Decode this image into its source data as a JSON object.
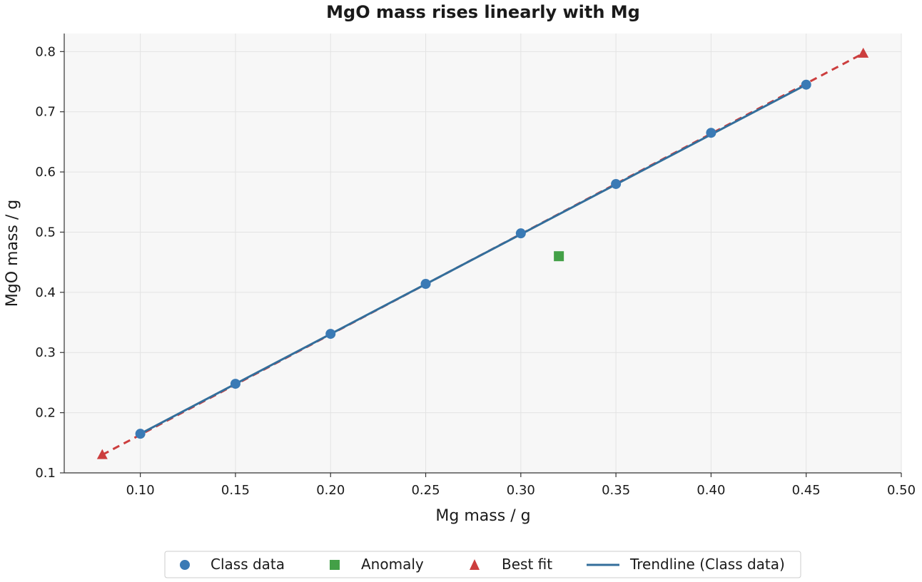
{
  "chart_data": {
    "type": "scatter",
    "title": "MgO mass rises linearly with Mg",
    "xlabel": "Mg mass / g",
    "ylabel": "MgO mass / g",
    "xlim": [
      0.06,
      0.5
    ],
    "ylim": [
      0.1,
      0.83
    ],
    "xticks": [
      "0.10",
      "0.15",
      "0.20",
      "0.25",
      "0.30",
      "0.35",
      "0.40",
      "0.45",
      "0.50"
    ],
    "yticks": [
      "0.1",
      "0.2",
      "0.3",
      "0.4",
      "0.5",
      "0.6",
      "0.7",
      "0.8"
    ],
    "grid": true,
    "legend_position": "bottom-center",
    "series": [
      {
        "name": "Class data",
        "marker": "circle",
        "color": "#3a7ab5",
        "x": [
          0.1,
          0.15,
          0.2,
          0.25,
          0.3,
          0.35,
          0.4,
          0.45
        ],
        "y": [
          0.165,
          0.248,
          0.331,
          0.414,
          0.498,
          0.58,
          0.665,
          0.745
        ]
      },
      {
        "name": "Anomaly",
        "marker": "square",
        "color": "#43a047",
        "x": [
          0.32
        ],
        "y": [
          0.46
        ]
      },
      {
        "name": "Best fit",
        "marker": "triangle",
        "color": "#cc3e3e",
        "x": [
          0.08,
          0.48
        ],
        "y": [
          0.13,
          0.797
        ]
      }
    ],
    "lines": [
      {
        "name": "Trendline (Class data)",
        "style": "solid",
        "color": "#336e9b",
        "x": [
          0.1,
          0.45
        ],
        "y": [
          0.165,
          0.745
        ]
      },
      {
        "name": "",
        "style": "dashed",
        "color": "#cc3e3e",
        "x": [
          0.08,
          0.48
        ],
        "y": [
          0.13,
          0.797
        ]
      }
    ]
  }
}
